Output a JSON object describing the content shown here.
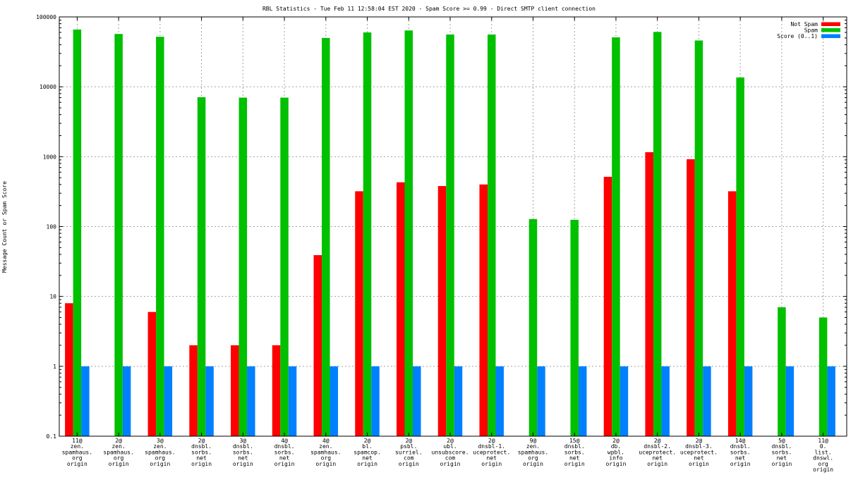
{
  "chart_data": {
    "type": "bar",
    "title": "RBL Statistics - Tue Feb 11 12:58:04 EST 2020 - Spam Score >= 0.99 - Direct SMTP client connection",
    "xlabel": "",
    "ylabel": "Message Count or Spam Score",
    "yscale": "log",
    "ylim": [
      0.1,
      100000
    ],
    "yticks": [
      "0.1",
      "1",
      "10",
      "100",
      "1000",
      "10000",
      "100000"
    ],
    "grid": true,
    "legend_position": "top-right",
    "categories": [
      [
        "11@",
        "zen.",
        "spamhaus.",
        "org",
        "origin"
      ],
      [
        "2@",
        "zen.",
        "spamhaus.",
        "org",
        "origin"
      ],
      [
        "3@",
        "zen.",
        "spamhaus.",
        "org",
        "origin"
      ],
      [
        "2@",
        "dnsbl.",
        "sorbs.",
        "net",
        "origin"
      ],
      [
        "3@",
        "dnsbl.",
        "sorbs.",
        "net",
        "origin"
      ],
      [
        "4@",
        "dnsbl.",
        "sorbs.",
        "net",
        "origin"
      ],
      [
        "4@",
        "zen.",
        "spamhaus.",
        "org",
        "origin"
      ],
      [
        "2@",
        "bl.",
        "spamcop.",
        "net",
        "origin"
      ],
      [
        "2@",
        "psbl.",
        "surriel.",
        "com",
        "origin"
      ],
      [
        "2@",
        "ubl.",
        "unsubscore.",
        "com",
        "origin"
      ],
      [
        "2@",
        "dnsbl-1.",
        "uceprotect.",
        "net",
        "origin"
      ],
      [
        "9@",
        "zen.",
        "spamhaus.",
        "org",
        "origin"
      ],
      [
        "15@",
        "dnsbl.",
        "sorbs.",
        "net",
        "origin"
      ],
      [
        "2@",
        "db.",
        "wpbl.",
        "info",
        "origin"
      ],
      [
        "2@",
        "dnsbl-2.",
        "uceprotect.",
        "net",
        "origin"
      ],
      [
        "2@",
        "dnsbl-3.",
        "uceprotect.",
        "net",
        "origin"
      ],
      [
        "14@",
        "dnsbl.",
        "sorbs.",
        "net",
        "origin"
      ],
      [
        "5@",
        "dnsbl.",
        "sorbs.",
        "net",
        "origin"
      ],
      [
        "11@",
        "0.",
        "list.",
        "dnswl.",
        "org",
        "origin"
      ]
    ],
    "series": [
      {
        "name": "Not Spam",
        "color": "#ff0000",
        "values": [
          8,
          null,
          6,
          2,
          2,
          2,
          39,
          320,
          430,
          380,
          400,
          null,
          null,
          515,
          1160,
          920,
          320,
          null,
          null
        ]
      },
      {
        "name": "Spam",
        "color": "#00c000",
        "values": [
          66000,
          57000,
          52000,
          7100,
          7000,
          7000,
          50000,
          60000,
          64000,
          56000,
          56000,
          128,
          125,
          51000,
          61000,
          46000,
          13600,
          7,
          5
        ]
      },
      {
        "name": "Score (0..1)",
        "color": "#0080ff",
        "values": [
          1,
          1,
          1,
          1,
          1,
          1,
          1,
          1,
          1,
          1,
          1,
          1,
          1,
          1,
          1,
          1,
          1,
          1,
          1
        ]
      }
    ]
  }
}
